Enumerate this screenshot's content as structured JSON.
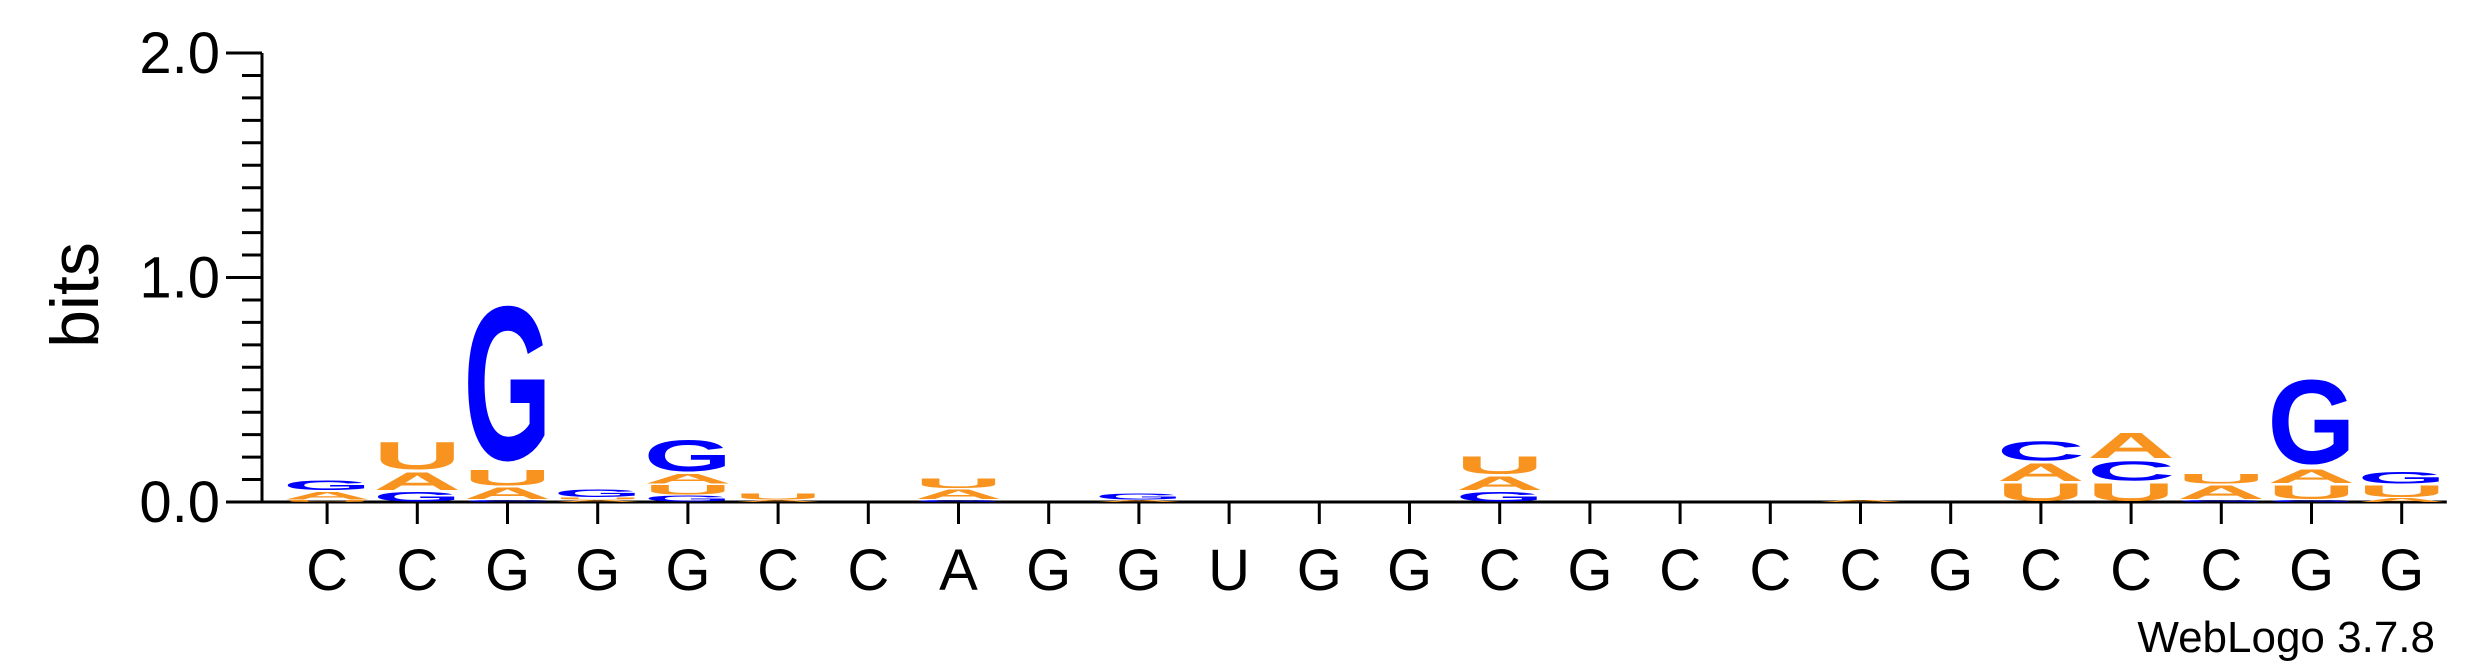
{
  "colors": {
    "A": "#f7931e",
    "U": "#f7931e",
    "G": "#0000ff",
    "C": "#0000ff",
    "axis": "#000000"
  },
  "credit": "WebLogo 3.7.8",
  "chart_data": {
    "type": "sequence-logo",
    "ylabel": "bits",
    "ylim": [
      0,
      2.0
    ],
    "yticks": [
      "0.0",
      "1.0",
      "2.0"
    ],
    "x_labels": [
      "C",
      "C",
      "G",
      "G",
      "G",
      "C",
      "C",
      "A",
      "G",
      "G",
      "U",
      "G",
      "G",
      "C",
      "G",
      "C",
      "C",
      "C",
      "G",
      "C",
      "C",
      "C",
      "G",
      "G"
    ],
    "stacks": [
      [
        {
          "letter": "U",
          "bits": 0.01
        },
        {
          "letter": "A",
          "bits": 0.04
        },
        {
          "letter": "G",
          "bits": 0.05
        }
      ],
      [
        {
          "letter": "G",
          "bits": 0.05
        },
        {
          "letter": "A",
          "bits": 0.09
        },
        {
          "letter": "U",
          "bits": 0.14
        }
      ],
      [
        {
          "letter": "C",
          "bits": 0.01
        },
        {
          "letter": "A",
          "bits": 0.06
        },
        {
          "letter": "U",
          "bits": 0.08
        },
        {
          "letter": "G",
          "bits": 0.79
        }
      ],
      [
        {
          "letter": "A",
          "bits": 0.01
        },
        {
          "letter": "U",
          "bits": 0.01
        },
        {
          "letter": "G",
          "bits": 0.04
        }
      ],
      [
        {
          "letter": "G",
          "bits": 0.03
        },
        {
          "letter": "U",
          "bits": 0.05
        },
        {
          "letter": "A",
          "bits": 0.05
        },
        {
          "letter": "G",
          "bits": 0.16
        }
      ],
      [
        {
          "letter": "A",
          "bits": 0.01
        },
        {
          "letter": "U",
          "bits": 0.03
        }
      ],
      [],
      [
        {
          "letter": "G",
          "bits": 0.01
        },
        {
          "letter": "A",
          "bits": 0.05
        },
        {
          "letter": "U",
          "bits": 0.05
        }
      ],
      [],
      [
        {
          "letter": "A",
          "bits": 0.01
        },
        {
          "letter": "G",
          "bits": 0.03
        }
      ],
      [],
      [],
      [],
      [
        {
          "letter": "G",
          "bits": 0.05
        },
        {
          "letter": "A",
          "bits": 0.07
        },
        {
          "letter": "U",
          "bits": 0.09
        }
      ],
      [],
      [],
      [],
      [
        {
          "letter": "A",
          "bits": 0.01
        }
      ],
      [],
      [
        {
          "letter": "U",
          "bits": 0.09
        },
        {
          "letter": "A",
          "bits": 0.09
        },
        {
          "letter": "C",
          "bits": 0.1
        }
      ],
      [
        {
          "letter": "U",
          "bits": 0.09
        },
        {
          "letter": "C",
          "bits": 0.1
        },
        {
          "letter": "A",
          "bits": 0.13
        }
      ],
      [
        {
          "letter": "G",
          "bits": 0.01
        },
        {
          "letter": "A",
          "bits": 0.07
        },
        {
          "letter": "U",
          "bits": 0.05
        }
      ],
      [
        {
          "letter": "G",
          "bits": 0.01
        },
        {
          "letter": "U",
          "bits": 0.07
        },
        {
          "letter": "A",
          "bits": 0.07
        },
        {
          "letter": "G",
          "bits": 0.43
        }
      ],
      [
        {
          "letter": "A",
          "bits": 0.02
        },
        {
          "letter": "U",
          "bits": 0.06
        },
        {
          "letter": "G",
          "bits": 0.06
        }
      ]
    ]
  }
}
